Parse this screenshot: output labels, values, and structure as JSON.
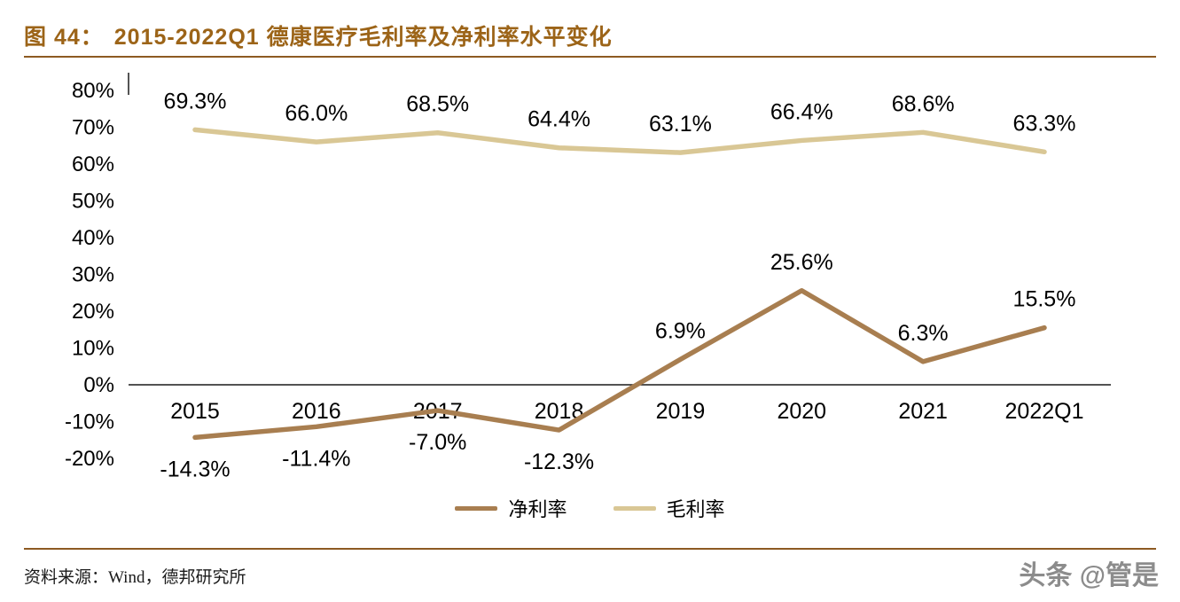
{
  "header": {
    "figure_no": "图 44：",
    "title": "2015-2022Q1 德康医疗毛利率及净利率水平变化"
  },
  "chart_data": {
    "type": "line",
    "title": "2015-2022Q1 德康医疗毛利率及净利率水平变化",
    "categories": [
      "2015",
      "2016",
      "2017",
      "2018",
      "2019",
      "2020",
      "2021",
      "2022Q1"
    ],
    "series": [
      {
        "name": "净利率",
        "color": "#a87e50",
        "values": [
          -14.3,
          -11.4,
          -7.0,
          -12.3,
          6.9,
          25.6,
          6.3,
          15.5
        ],
        "labels": [
          "-14.3%",
          "-11.4%",
          "-7.0%",
          "-12.3%",
          "6.9%",
          "25.6%",
          "6.3%",
          "15.5%"
        ]
      },
      {
        "name": "毛利率",
        "color": "#d9c795",
        "values": [
          69.3,
          66.0,
          68.5,
          64.4,
          63.1,
          66.4,
          68.6,
          63.3
        ],
        "labels": [
          "69.3%",
          "66.0%",
          "68.5%",
          "64.4%",
          "63.1%",
          "66.4%",
          "68.6%",
          "63.3%"
        ]
      }
    ],
    "ylim": [
      -20,
      80
    ],
    "yticks": [
      "80%",
      "70%",
      "60%",
      "50%",
      "40%",
      "30%",
      "20%",
      "10%",
      "0%",
      "-10%",
      "-20%"
    ],
    "grid": false,
    "legend_position": "bottom"
  },
  "footer": {
    "source": "资料来源：Wind，德邦研究所",
    "watermark": "头条 @管是"
  }
}
